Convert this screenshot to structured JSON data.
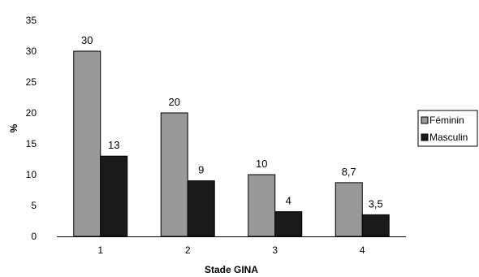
{
  "chart_data": {
    "type": "bar",
    "title": "",
    "xlabel": "Stade GINA",
    "ylabel": "%",
    "categories": [
      "1",
      "2",
      "3",
      "4"
    ],
    "series": [
      {
        "name": "Féminin",
        "values": [
          30,
          20,
          10,
          8.7
        ],
        "labels": [
          "30",
          "20",
          "10",
          "8,7"
        ],
        "color": "#999999"
      },
      {
        "name": "Masculin",
        "values": [
          13,
          9,
          4,
          3.5
        ],
        "labels": [
          "13",
          "9",
          "4",
          "3,5"
        ],
        "color": "#1a1a1a"
      }
    ],
    "ylim": [
      0,
      35
    ],
    "yticks": [
      "0",
      "5",
      "10",
      "15",
      "20",
      "25",
      "30",
      "35"
    ],
    "grid": false,
    "legend": "right"
  }
}
